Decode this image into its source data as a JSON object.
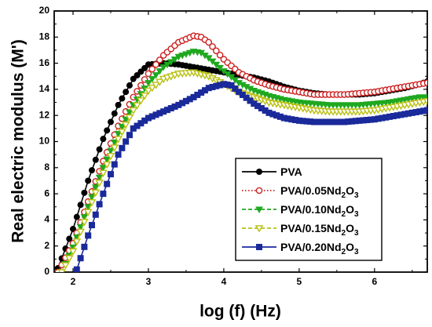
{
  "chart_data": {
    "type": "line",
    "xlabel": "log (f) (Hz)",
    "ylabel": "Real electric modulus (M')",
    "xlim": [
      1.75,
      6.7
    ],
    "ylim": [
      0,
      20
    ],
    "x_ticks": [
      "2",
      "3",
      "4",
      "5",
      "6"
    ],
    "y_ticks": [
      "0",
      "2",
      "4",
      "6",
      "8",
      "10",
      "12",
      "14",
      "16",
      "18",
      "20"
    ],
    "legend_position": "bottom-right",
    "series": [
      {
        "name": "PVA",
        "legend": {
          "pre": "PVA",
          "sub": "",
          "post": ""
        },
        "color": "#000000",
        "marker": "filled-circle",
        "line": "solid",
        "points": [
          [
            1.8,
            0.3
          ],
          [
            2.0,
            3.3
          ],
          [
            2.2,
            7.0
          ],
          [
            2.4,
            10.2
          ],
          [
            2.6,
            12.8
          ],
          [
            2.8,
            14.8
          ],
          [
            3.0,
            15.9
          ],
          [
            3.2,
            16.0
          ],
          [
            3.4,
            15.9
          ],
          [
            3.6,
            15.7
          ],
          [
            3.8,
            15.5
          ],
          [
            4.0,
            15.3
          ],
          [
            4.2,
            15.1
          ],
          [
            4.4,
            14.9
          ],
          [
            4.6,
            14.6
          ],
          [
            4.8,
            14.2
          ],
          [
            5.0,
            13.9
          ],
          [
            5.2,
            13.7
          ],
          [
            5.4,
            13.6
          ],
          [
            5.6,
            13.6
          ],
          [
            5.8,
            13.6
          ],
          [
            6.0,
            13.7
          ],
          [
            6.2,
            13.9
          ],
          [
            6.4,
            14.1
          ],
          [
            6.6,
            14.4
          ],
          [
            6.7,
            14.6
          ]
        ]
      },
      {
        "name": "PVA/0.05Nd2O3",
        "legend": {
          "pre": "PVA/0.05Nd",
          "sub": "2",
          "post": "O3"
        },
        "color": "#cc2222",
        "marker": "open-circle",
        "line": "dotted",
        "points": [
          [
            1.8,
            0.0
          ],
          [
            2.0,
            2.2
          ],
          [
            2.2,
            5.4
          ],
          [
            2.4,
            8.5
          ],
          [
            2.6,
            11.2
          ],
          [
            2.8,
            13.4
          ],
          [
            3.0,
            15.2
          ],
          [
            3.2,
            16.6
          ],
          [
            3.4,
            17.6
          ],
          [
            3.6,
            18.1
          ],
          [
            3.7,
            18.0
          ],
          [
            3.8,
            17.6
          ],
          [
            4.0,
            16.3
          ],
          [
            4.2,
            15.3
          ],
          [
            4.4,
            14.7
          ],
          [
            4.6,
            14.3
          ],
          [
            4.8,
            14.0
          ],
          [
            5.0,
            13.8
          ],
          [
            5.2,
            13.6
          ],
          [
            5.4,
            13.6
          ],
          [
            5.6,
            13.6
          ],
          [
            5.8,
            13.7
          ],
          [
            6.0,
            13.8
          ],
          [
            6.2,
            14.0
          ],
          [
            6.4,
            14.2
          ],
          [
            6.6,
            14.4
          ],
          [
            6.7,
            14.5
          ]
        ]
      },
      {
        "name": "PVA/0.10Nd2O3",
        "legend": {
          "pre": "PVA/0.10Nd",
          "sub": "2",
          "post": "O3"
        },
        "color": "#1fa81f",
        "marker": "filled-triangle-down",
        "line": "dashed",
        "points": [
          [
            1.85,
            0.0
          ],
          [
            2.0,
            1.9
          ],
          [
            2.2,
            5.0
          ],
          [
            2.4,
            8.0
          ],
          [
            2.6,
            10.6
          ],
          [
            2.8,
            12.8
          ],
          [
            3.0,
            14.5
          ],
          [
            3.2,
            15.7
          ],
          [
            3.4,
            16.5
          ],
          [
            3.6,
            16.9
          ],
          [
            3.7,
            16.8
          ],
          [
            3.8,
            16.4
          ],
          [
            4.0,
            15.4
          ],
          [
            4.2,
            14.5
          ],
          [
            4.4,
            13.9
          ],
          [
            4.6,
            13.5
          ],
          [
            4.8,
            13.2
          ],
          [
            5.0,
            13.0
          ],
          [
            5.2,
            12.9
          ],
          [
            5.4,
            12.8
          ],
          [
            5.6,
            12.8
          ],
          [
            5.8,
            12.8
          ],
          [
            6.0,
            12.9
          ],
          [
            6.2,
            13.0
          ],
          [
            6.4,
            13.2
          ],
          [
            6.6,
            13.4
          ],
          [
            6.7,
            13.4
          ]
        ]
      },
      {
        "name": "PVA/0.15Nd2O3",
        "legend": {
          "pre": "PVA/0.15Nd",
          "sub": "2",
          "post": "O3"
        },
        "color": "#b8c010",
        "marker": "open-triangle-down",
        "line": "dashed",
        "points": [
          [
            1.85,
            0.0
          ],
          [
            2.0,
            1.6
          ],
          [
            2.2,
            4.6
          ],
          [
            2.4,
            7.6
          ],
          [
            2.6,
            10.2
          ],
          [
            2.8,
            12.4
          ],
          [
            3.0,
            13.9
          ],
          [
            3.2,
            14.8
          ],
          [
            3.4,
            15.2
          ],
          [
            3.6,
            15.3
          ],
          [
            3.8,
            15.0
          ],
          [
            4.0,
            14.4
          ],
          [
            4.2,
            13.8
          ],
          [
            4.4,
            13.4
          ],
          [
            4.6,
            13.0
          ],
          [
            4.8,
            12.8
          ],
          [
            5.0,
            12.6
          ],
          [
            5.2,
            12.4
          ],
          [
            5.4,
            12.3
          ],
          [
            5.6,
            12.3
          ],
          [
            5.8,
            12.3
          ],
          [
            6.0,
            12.4
          ],
          [
            6.2,
            12.6
          ],
          [
            6.4,
            12.8
          ],
          [
            6.6,
            13.0
          ],
          [
            6.7,
            13.1
          ]
        ]
      },
      {
        "name": "PVA/0.20Nd2O3",
        "legend": {
          "pre": "PVA/0.20Nd",
          "sub": "2",
          "post": "O3"
        },
        "color": "#1a2a9a",
        "marker": "filled-square",
        "line": "solid",
        "points": [
          [
            2.05,
            0.2
          ],
          [
            2.2,
            2.8
          ],
          [
            2.4,
            6.0
          ],
          [
            2.6,
            9.0
          ],
          [
            2.8,
            11.0
          ],
          [
            3.0,
            11.8
          ],
          [
            3.2,
            12.3
          ],
          [
            3.4,
            12.8
          ],
          [
            3.6,
            13.4
          ],
          [
            3.8,
            14.1
          ],
          [
            4.0,
            14.4
          ],
          [
            4.1,
            14.3
          ],
          [
            4.2,
            13.8
          ],
          [
            4.4,
            12.9
          ],
          [
            4.6,
            12.2
          ],
          [
            4.8,
            11.8
          ],
          [
            5.0,
            11.6
          ],
          [
            5.2,
            11.5
          ],
          [
            5.4,
            11.5
          ],
          [
            5.6,
            11.5
          ],
          [
            5.8,
            11.6
          ],
          [
            6.0,
            11.7
          ],
          [
            6.2,
            11.9
          ],
          [
            6.4,
            12.1
          ],
          [
            6.6,
            12.3
          ],
          [
            6.7,
            12.4
          ]
        ]
      }
    ]
  }
}
